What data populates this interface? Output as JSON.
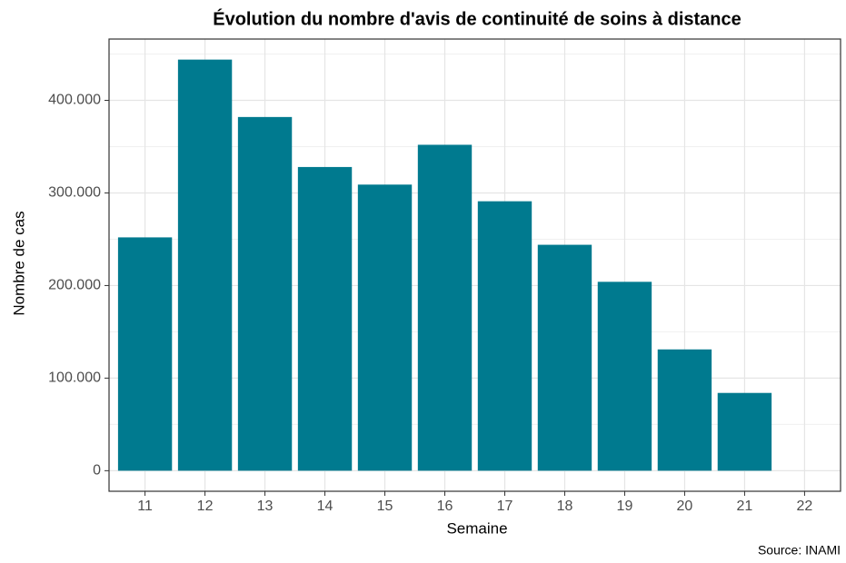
{
  "chart_data": {
    "type": "bar",
    "title": "Évolution du nombre d'avis de continuité de soins à distance",
    "x_label": "Semaine",
    "y_label": "Nombre de cas",
    "caption": "Source: INAMI",
    "categories": [
      "11",
      "12",
      "13",
      "14",
      "15",
      "16",
      "17",
      "18",
      "19",
      "20",
      "21",
      "22"
    ],
    "values": [
      252000,
      444000,
      382000,
      328000,
      309000,
      352000,
      291000,
      244000,
      204000,
      131000,
      84000,
      null
    ],
    "color": "#007a8f",
    "ylim": [
      -22200,
      466200
    ],
    "yticks": [
      0,
      {
        "value": 100000,
        "label": "100.000"
      },
      {
        "value": 200000,
        "label": "200.000"
      },
      {
        "value": 300000,
        "label": "300.000"
      },
      {
        "value": 400000,
        "label": "400.000"
      }
    ],
    "yminor": [
      50000,
      150000,
      250000,
      350000,
      450000
    ],
    "grid": true
  }
}
